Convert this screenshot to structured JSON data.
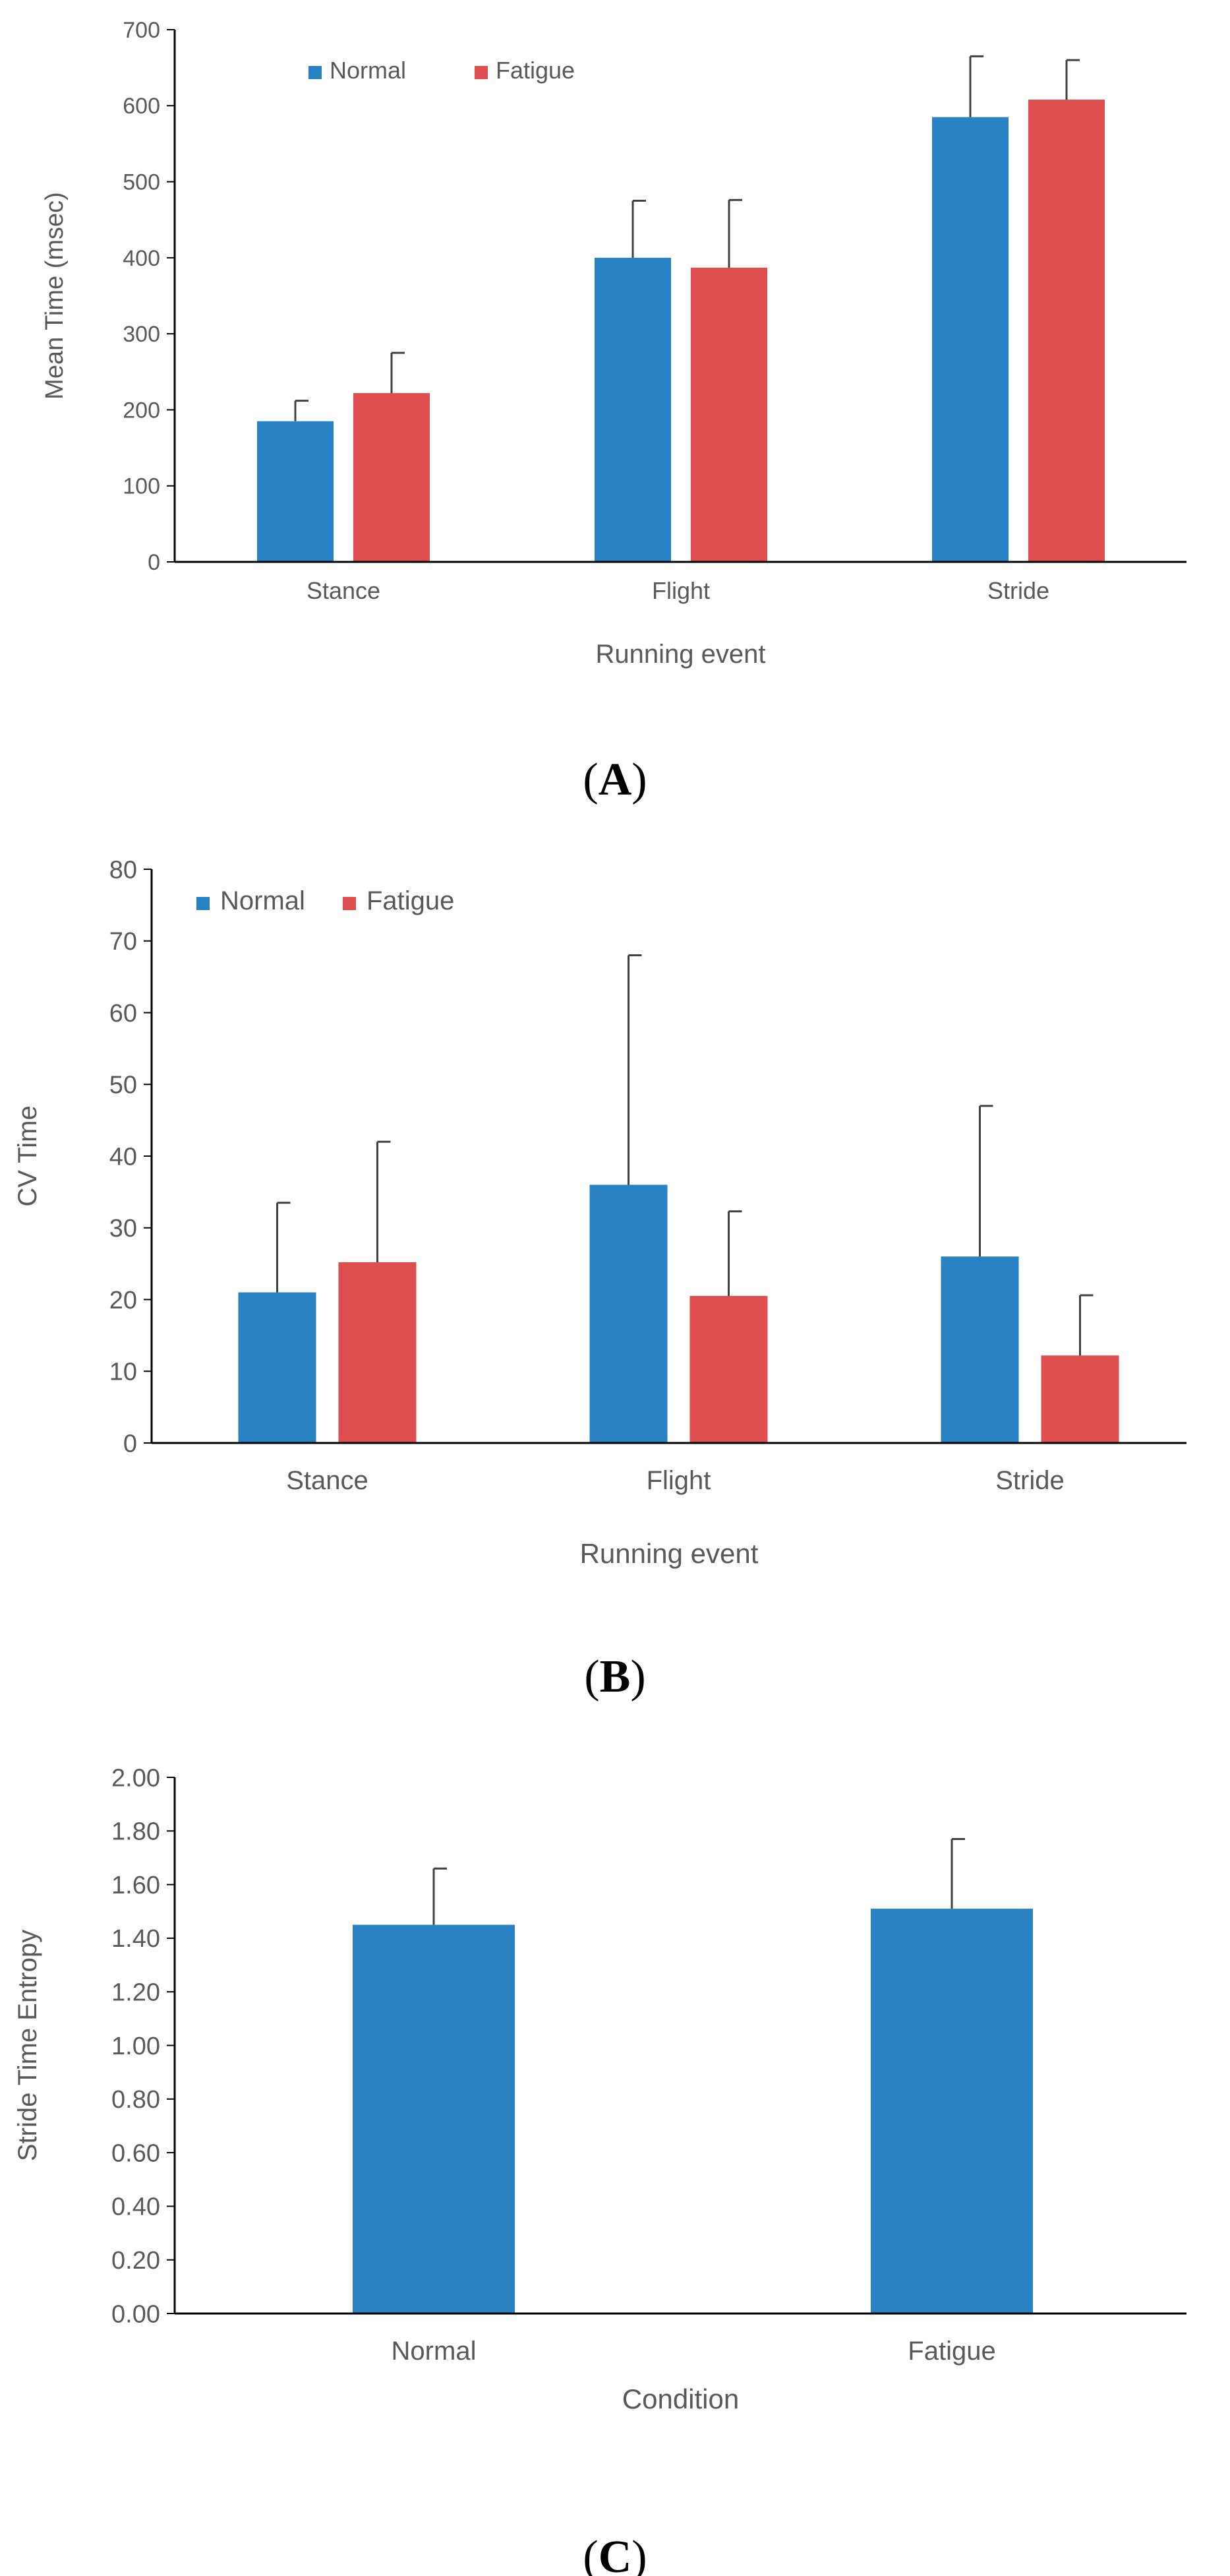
{
  "colors": {
    "normal": "#2781c2",
    "fatigue": "#de4e4e",
    "axis": "#000000",
    "text": "#595959",
    "error_bar": "#404040"
  },
  "chart_data": [
    {
      "type": "bar",
      "panel": "A",
      "panel_label": "A",
      "categories": [
        "Stance",
        "Flight",
        "Stride"
      ],
      "series": [
        {
          "name": "Normal",
          "values": [
            185,
            400,
            585
          ],
          "errors": [
            27,
            75,
            80
          ]
        },
        {
          "name": "Fatigue",
          "values": [
            222,
            387,
            608
          ],
          "errors": [
            53,
            89,
            52
          ]
        }
      ],
      "title": "",
      "xlabel": "Running event",
      "ylabel": "Mean Time (msec)",
      "ylim": [
        0,
        700
      ],
      "yticks": [
        "0",
        "100",
        "200",
        "300",
        "400",
        "500",
        "600",
        "700"
      ],
      "legend": "top-left",
      "grid": false
    },
    {
      "type": "bar",
      "panel": "B",
      "panel_label": "B",
      "categories": [
        "Stance",
        "Flight",
        "Stride"
      ],
      "series": [
        {
          "name": "Normal",
          "values": [
            21,
            36,
            26
          ],
          "errors": [
            12.5,
            32,
            21
          ]
        },
        {
          "name": "Fatigue",
          "values": [
            25.2,
            20.5,
            12.2
          ],
          "errors": [
            16.8,
            11.8,
            8.4
          ]
        }
      ],
      "title": "",
      "xlabel": "Running event",
      "ylabel": "CV Time",
      "ylim": [
        0,
        80
      ],
      "yticks": [
        "0",
        "10",
        "20",
        "30",
        "40",
        "50",
        "60",
        "70",
        "80"
      ],
      "legend": "top-left",
      "grid": false
    },
    {
      "type": "bar",
      "panel": "C",
      "panel_label": "C",
      "categories": [
        "Normal",
        "Fatigue"
      ],
      "series": [
        {
          "name": "Stride Time Entropy",
          "values": [
            1.45,
            1.51
          ],
          "errors": [
            0.21,
            0.26
          ]
        }
      ],
      "title": "",
      "xlabel": "Condition",
      "ylabel": "Stride Time Entropy",
      "ylim": [
        0,
        2
      ],
      "yticks": [
        "0.00",
        "0.20",
        "0.40",
        "0.60",
        "0.80",
        "1.00",
        "1.20",
        "1.40",
        "1.60",
        "1.80",
        "2.00"
      ],
      "legend": "none",
      "grid": false
    }
  ]
}
